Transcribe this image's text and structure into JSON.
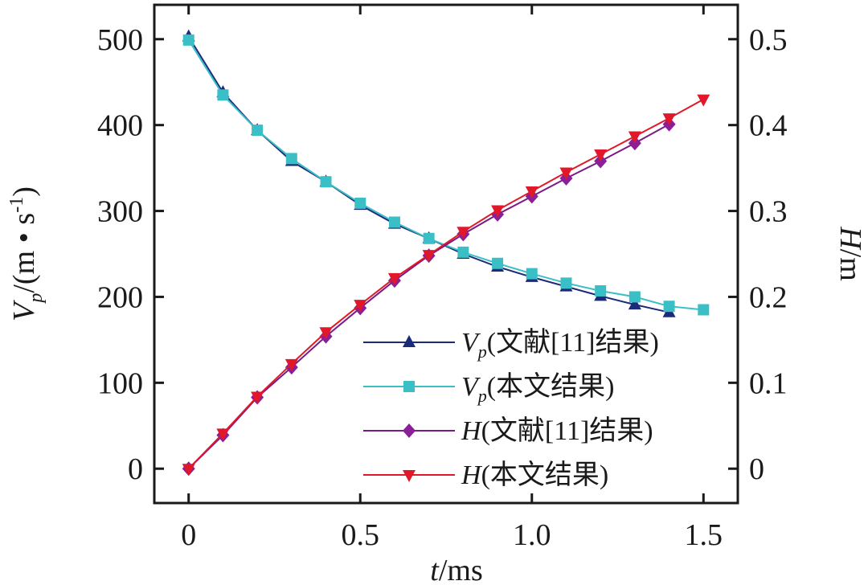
{
  "chart_data": {
    "type": "line",
    "x_axis": {
      "label_var": "t",
      "label_unit": "/ms",
      "range": [
        -0.1,
        1.6
      ],
      "ticks": [
        0,
        0.5,
        1.0,
        1.5
      ],
      "tick_labels": [
        "0",
        "0.5",
        "1.0",
        "1.5"
      ]
    },
    "y_left": {
      "label_var": "V",
      "label_sub": "p",
      "label_unit": "/(m • s",
      "label_sup": "-1",
      "label_close": ")",
      "range": [
        -40,
        540
      ],
      "ticks": [
        0,
        100,
        200,
        300,
        400,
        500
      ],
      "tick_labels": [
        "0",
        "100",
        "200",
        "300",
        "400",
        "500"
      ]
    },
    "y_right": {
      "label_var": "H",
      "label_unit": "/m",
      "range": [
        -0.04,
        0.54
      ],
      "ticks": [
        0,
        0.1,
        0.2,
        0.3,
        0.4,
        0.5
      ],
      "tick_labels": [
        "0",
        "0.1",
        "0.2",
        "0.3",
        "0.4",
        "0.5"
      ]
    },
    "series": [
      {
        "name": "Vp(文献[11]结果)",
        "legend_var": "V",
        "legend_sub": "p",
        "legend_text": "(文献[11]结果)",
        "axis": "left",
        "marker": "triangle-up",
        "line_color": "#1c2a7a",
        "marker_color": "#1c2a7a",
        "x": [
          0,
          0.1,
          0.2,
          0.3,
          0.4,
          0.5,
          0.6,
          0.7,
          0.8,
          0.9,
          1.0,
          1.1,
          1.2,
          1.3,
          1.4
        ],
        "values": [
          503,
          438,
          394,
          358,
          334,
          307,
          285,
          268,
          250,
          235,
          223,
          212,
          201,
          191,
          182
        ]
      },
      {
        "name": "Vp(本文结果)",
        "legend_var": "V",
        "legend_sub": "p",
        "legend_text": "(本文结果)",
        "axis": "left",
        "marker": "square",
        "line_color": "#3bbfc6",
        "marker_color": "#3bbfc6",
        "x": [
          0,
          0.1,
          0.2,
          0.3,
          0.4,
          0.5,
          0.6,
          0.7,
          0.8,
          0.9,
          1.0,
          1.1,
          1.2,
          1.3,
          1.4,
          1.5
        ],
        "values": [
          499,
          435,
          394,
          361,
          334,
          309,
          287,
          268,
          252,
          239,
          227,
          216,
          207,
          200,
          189,
          185
        ]
      },
      {
        "name": "H(文献[11]结果)",
        "legend_var": "H",
        "legend_sub": "",
        "legend_text": "(文献[11]结果)",
        "axis": "right",
        "marker": "diamond",
        "line_color": "#7a1a88",
        "marker_color": "#8a1f98",
        "x": [
          0,
          0.1,
          0.2,
          0.3,
          0.4,
          0.5,
          0.6,
          0.7,
          0.8,
          0.9,
          1.0,
          1.1,
          1.2,
          1.3,
          1.4
        ],
        "values": [
          0.0,
          0.039,
          0.083,
          0.118,
          0.154,
          0.187,
          0.219,
          0.248,
          0.273,
          0.296,
          0.317,
          0.338,
          0.358,
          0.379,
          0.401
        ]
      },
      {
        "name": "H(本文结果)",
        "legend_var": "H",
        "legend_sub": "",
        "legend_text": "(本文结果)",
        "axis": "right",
        "marker": "triangle-down",
        "line_color": "#e0182a",
        "marker_color": "#e0182a",
        "x": [
          0,
          0.1,
          0.2,
          0.3,
          0.4,
          0.5,
          0.6,
          0.7,
          0.8,
          0.9,
          1.0,
          1.1,
          1.2,
          1.3,
          1.4,
          1.5
        ],
        "values": [
          0.0,
          0.041,
          0.084,
          0.122,
          0.159,
          0.191,
          0.222,
          0.249,
          0.276,
          0.301,
          0.323,
          0.345,
          0.366,
          0.387,
          0.408,
          0.43
        ]
      }
    ],
    "legend_position": "bottom-right",
    "grid": false
  }
}
